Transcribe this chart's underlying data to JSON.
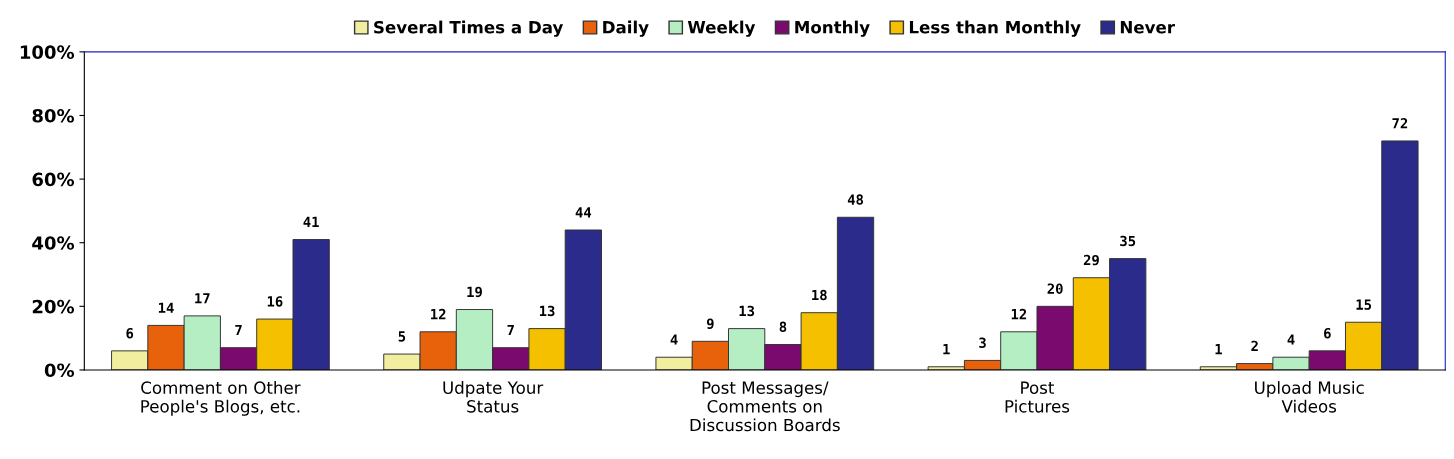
{
  "chart_data": {
    "type": "bar",
    "categories": [
      "Comment on Other\nPeople's Blogs, etc.",
      "Udpate Your\nStatus",
      "Post Messages/\nComments on\nDiscussion Boards",
      "Post\nPictures",
      "Upload Music\nVideos"
    ],
    "series": [
      {
        "name": "Several Times a Day",
        "color": "#f2eea0",
        "values": [
          6,
          5,
          4,
          1,
          1
        ]
      },
      {
        "name": "Daily",
        "color": "#e8620c",
        "values": [
          14,
          12,
          9,
          3,
          2
        ]
      },
      {
        "name": "Weekly",
        "color": "#b6eec4",
        "values": [
          17,
          19,
          13,
          12,
          4
        ]
      },
      {
        "name": "Monthly",
        "color": "#7a0a6e",
        "values": [
          7,
          7,
          8,
          20,
          6
        ]
      },
      {
        "name": "Less than Monthly",
        "color": "#f5c000",
        "values": [
          16,
          13,
          18,
          29,
          15
        ]
      },
      {
        "name": "Never",
        "color": "#2b2b8c",
        "values": [
          41,
          44,
          48,
          35,
          72
        ]
      }
    ],
    "ylim": [
      0,
      100
    ],
    "yticks": [
      {
        "value": 0,
        "label": "0%"
      },
      {
        "value": 20,
        "label": "20%"
      },
      {
        "value": 40,
        "label": "40%"
      },
      {
        "value": 60,
        "label": "60%"
      },
      {
        "value": 80,
        "label": "80%"
      },
      {
        "value": 100,
        "label": "100%"
      }
    ],
    "data_labels": true,
    "grid": false,
    "legend": "top"
  }
}
